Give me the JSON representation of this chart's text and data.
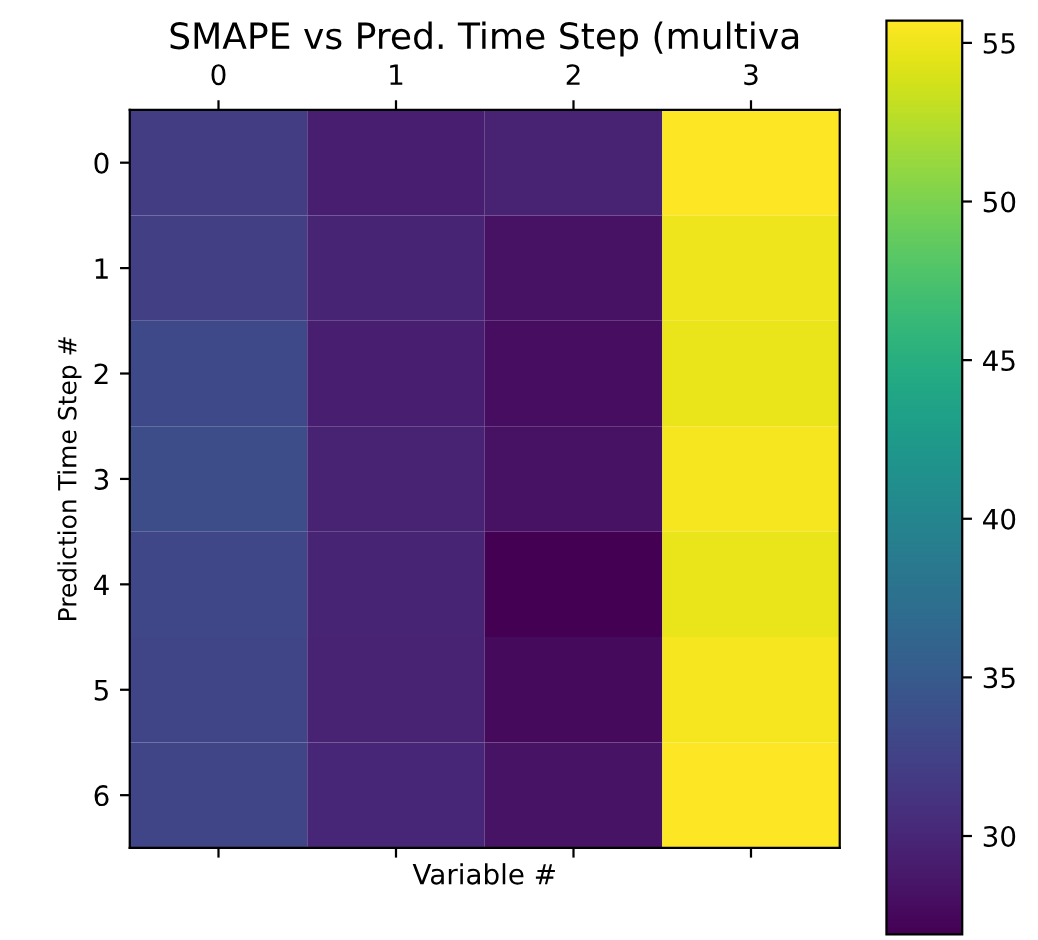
{
  "chart_data": {
    "type": "heatmap",
    "title": "SMAPE vs Pred. Time Step (multiva",
    "xlabel": "Variable #",
    "ylabel": "Prediction Time Step #",
    "categories": [
      "0",
      "1",
      "2",
      "3"
    ],
    "y_categories": [
      "0",
      "1",
      "2",
      "3",
      "4",
      "5",
      "6"
    ],
    "cells": [
      [
        32.0,
        29.3,
        29.6,
        55.6
      ],
      [
        32.3,
        29.8,
        28.2,
        55.0
      ],
      [
        33.3,
        29.3,
        27.8,
        54.8
      ],
      [
        33.6,
        29.6,
        28.2,
        55.3
      ],
      [
        33.0,
        29.8,
        26.9,
        54.7
      ],
      [
        32.8,
        29.6,
        27.6,
        55.3
      ],
      [
        32.8,
        30.0,
        28.3,
        55.7
      ]
    ],
    "clim": [
      26.9,
      55.7
    ],
    "cticks": [
      30,
      35,
      40,
      45,
      50,
      55
    ]
  }
}
